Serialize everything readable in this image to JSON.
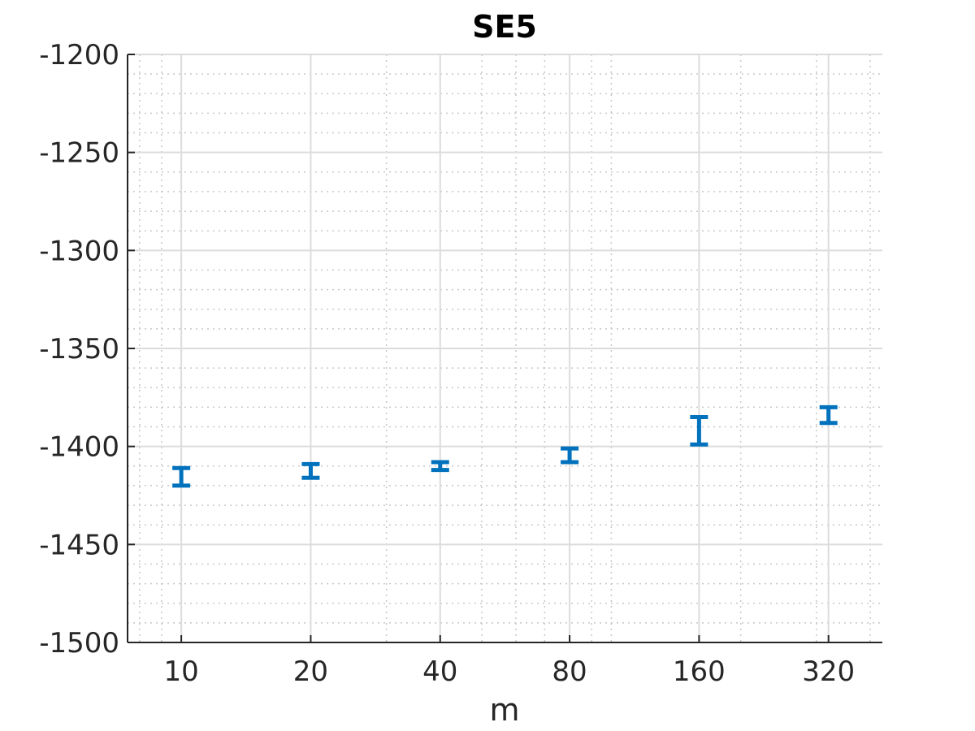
{
  "chart_data": {
    "type": "scatter",
    "title": "SE5",
    "xlabel": "m",
    "ylabel": "",
    "x_scale": "log2",
    "x_ticks": [
      10,
      20,
      40,
      80,
      160,
      320
    ],
    "x_tick_labels": [
      "10",
      "20",
      "40",
      "80",
      "160",
      "320"
    ],
    "xlim": [
      7.5,
      427
    ],
    "ylim": [
      -1500,
      -1200
    ],
    "y_ticks": [
      -1500,
      -1450,
      -1400,
      -1350,
      -1300,
      -1250,
      -1200
    ],
    "y_tick_labels": [
      "-1500",
      "-1450",
      "-1400",
      "-1350",
      "-1300",
      "-1250",
      "-1200"
    ],
    "grid": true,
    "minor_grid": true,
    "marker": "errorbar",
    "series": [
      {
        "color": "#0072BD",
        "points": [
          {
            "x": 10,
            "low": -1420,
            "high": -1411
          },
          {
            "x": 20,
            "low": -1416,
            "high": -1409
          },
          {
            "x": 40,
            "low": -1412,
            "high": -1408
          },
          {
            "x": 80,
            "low": -1408,
            "high": -1401
          },
          {
            "x": 160,
            "low": -1399,
            "high": -1385
          },
          {
            "x": 320,
            "low": -1388,
            "high": -1380
          }
        ]
      }
    ]
  }
}
